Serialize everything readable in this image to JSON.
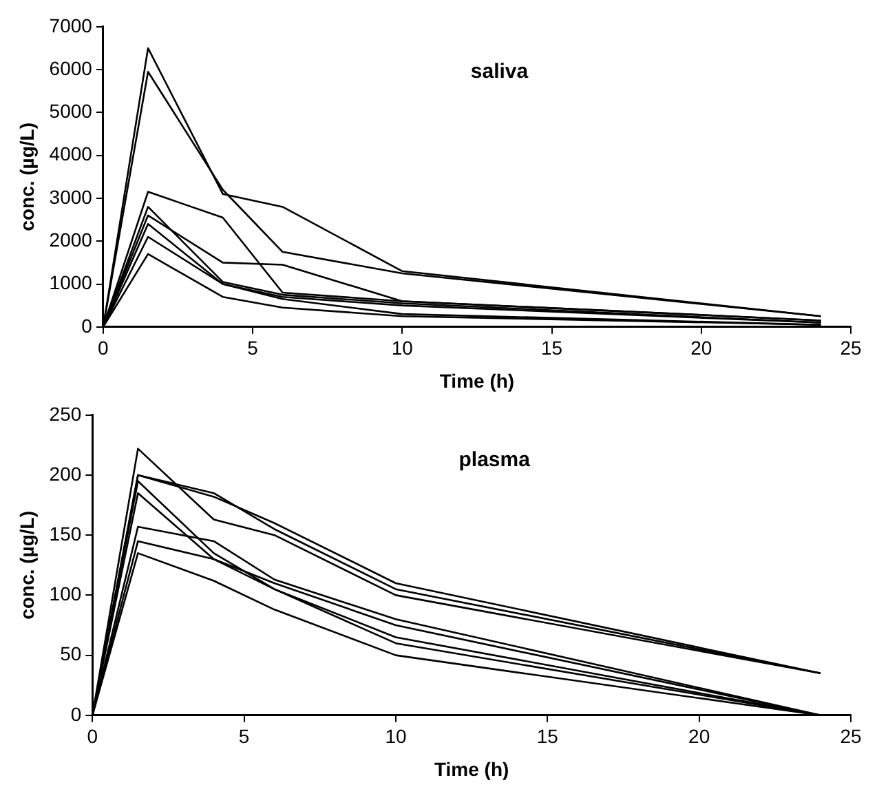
{
  "chart_data": [
    {
      "type": "line",
      "title": "saliva",
      "xlabel": "Time (h)",
      "ylabel": "conc. (µg/L)",
      "x": [
        0,
        1.5,
        4,
        6,
        10,
        24
      ],
      "xlim": [
        0,
        25
      ],
      "xticks": [
        0,
        5,
        10,
        15,
        20,
        25
      ],
      "ylim": [
        0,
        7000
      ],
      "yticks": [
        0,
        1000,
        2000,
        3000,
        4000,
        5000,
        6000,
        7000
      ],
      "grid": false,
      "legend": false,
      "marker": "none",
      "series": [
        {
          "color": "#000000",
          "values": [
            0,
            6500,
            3100,
            2800,
            1300,
            250
          ]
        },
        {
          "color": "#000000",
          "values": [
            0,
            5950,
            3200,
            1750,
            1250,
            250
          ]
        },
        {
          "color": "#000000",
          "values": [
            0,
            3150,
            2550,
            800,
            600,
            150
          ]
        },
        {
          "color": "#000000",
          "values": [
            0,
            2800,
            1050,
            750,
            550,
            100
          ]
        },
        {
          "color": "#000000",
          "values": [
            0,
            2600,
            1500,
            1450,
            600,
            150
          ]
        },
        {
          "color": "#000000",
          "values": [
            0,
            2400,
            1000,
            700,
            500,
            100
          ]
        },
        {
          "color": "#000000",
          "values": [
            0,
            2100,
            1000,
            650,
            300,
            50
          ]
        },
        {
          "color": "#000000",
          "values": [
            0,
            1700,
            700,
            450,
            250,
            50
          ]
        }
      ]
    },
    {
      "type": "line",
      "title": "plasma",
      "xlabel": "Time (h)",
      "ylabel": "conc. (µg/L)",
      "x": [
        0,
        1.5,
        4,
        6,
        10,
        24
      ],
      "xlim": [
        0,
        25
      ],
      "xticks": [
        0,
        5,
        10,
        15,
        20,
        25
      ],
      "ylim": [
        0,
        250
      ],
      "yticks": [
        0,
        50,
        100,
        150,
        200,
        250
      ],
      "grid": false,
      "legend": false,
      "marker": "none",
      "series": [
        {
          "color": "#000000",
          "values": [
            0,
            222,
            163,
            150,
            100,
            35
          ]
        },
        {
          "color": "#000000",
          "values": [
            0,
            200,
            182,
            160,
            110,
            35
          ]
        },
        {
          "color": "#000000",
          "values": [
            0,
            200,
            185,
            155,
            105,
            35
          ]
        },
        {
          "color": "#000000",
          "values": [
            0,
            185,
            130,
            110,
            75,
            0
          ]
        },
        {
          "color": "#000000",
          "values": [
            0,
            195,
            135,
            105,
            65,
            0
          ]
        },
        {
          "color": "#000000",
          "values": [
            0,
            157,
            145,
            113,
            80,
            0
          ]
        },
        {
          "color": "#000000",
          "values": [
            0,
            145,
            130,
            105,
            60,
            0
          ]
        },
        {
          "color": "#000000",
          "values": [
            0,
            135,
            112,
            88,
            50,
            0
          ]
        }
      ]
    }
  ]
}
